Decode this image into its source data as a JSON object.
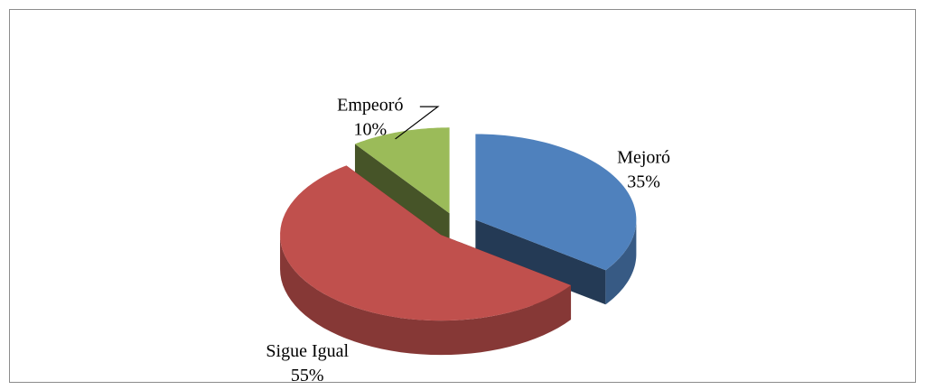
{
  "chart_data": {
    "type": "pie",
    "categories": [
      "Mejoró",
      "Sigue Igual",
      "Empeoró"
    ],
    "values": [
      35,
      55,
      10
    ],
    "value_labels": [
      "35%",
      "55%",
      "10%"
    ],
    "colors": [
      "#4f81bd",
      "#c0504d",
      "#9bbb59"
    ],
    "exploded": true,
    "three_d": true
  }
}
